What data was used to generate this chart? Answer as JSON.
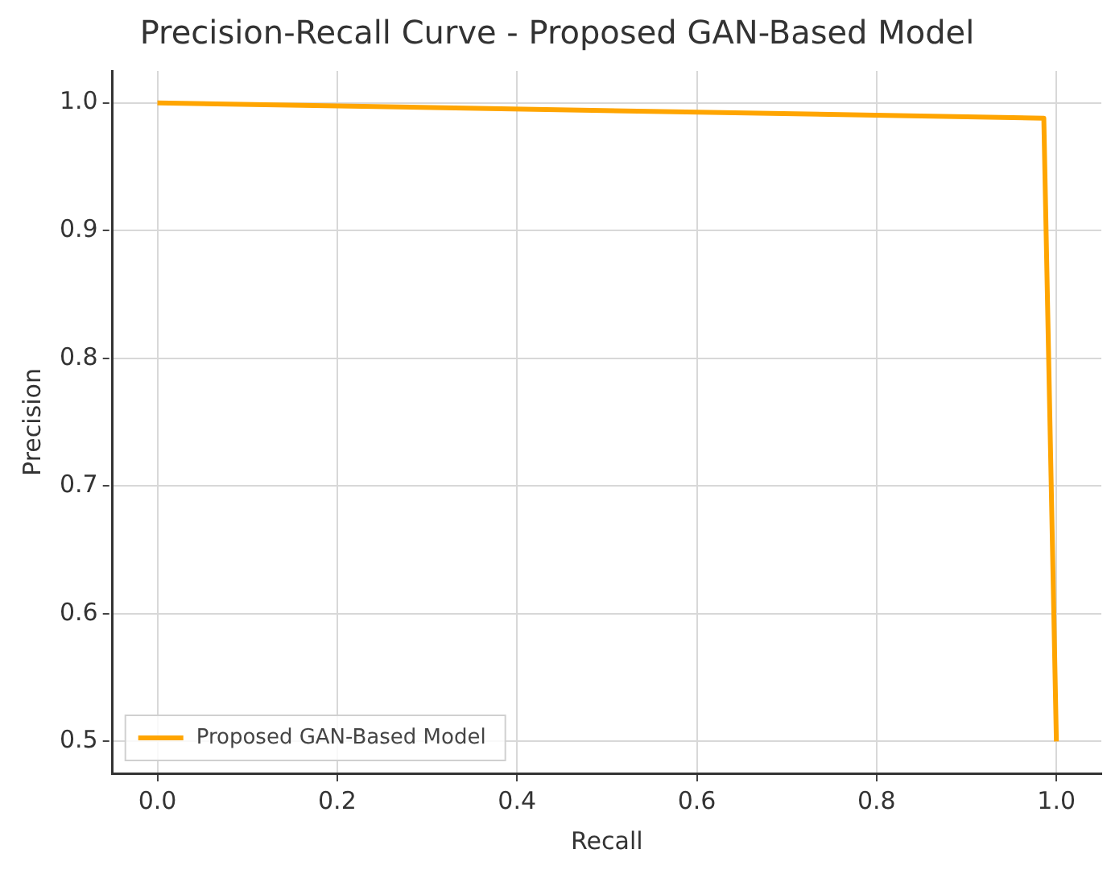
{
  "chart_data": {
    "type": "line",
    "title": "Precision-Recall Curve - Proposed GAN-Based Model",
    "xlabel": "Recall",
    "ylabel": "Precision",
    "series": [
      {
        "name": "Proposed GAN-Based Model",
        "color": "#ffa500",
        "x": [
          0.0,
          0.986,
          1.0
        ],
        "values": [
          1.0,
          0.988,
          0.5
        ]
      }
    ],
    "xlim": [
      -0.05,
      1.05
    ],
    "xticks": [
      {
        "value": 0,
        "label": "0.0"
      },
      {
        "value": 0.2,
        "label": "0.2"
      },
      {
        "value": 0.4,
        "label": "0.4"
      },
      {
        "value": 0.6,
        "label": "0.6"
      },
      {
        "value": 0.8,
        "label": "0.8"
      },
      {
        "value": 1,
        "label": "1.0"
      }
    ],
    "ylim": [
      0.475,
      1.025
    ],
    "yticks": [
      {
        "value": 0.5,
        "label": "0.5"
      },
      {
        "value": 0.6,
        "label": "0.6"
      },
      {
        "value": 0.7,
        "label": "0.7"
      },
      {
        "value": 0.8,
        "label": "0.8"
      },
      {
        "value": 0.9,
        "label": "0.9"
      },
      {
        "value": 1,
        "label": "1.0"
      }
    ],
    "grid": true,
    "line_style": "solid",
    "marker": "none",
    "legend": "bottom left"
  }
}
